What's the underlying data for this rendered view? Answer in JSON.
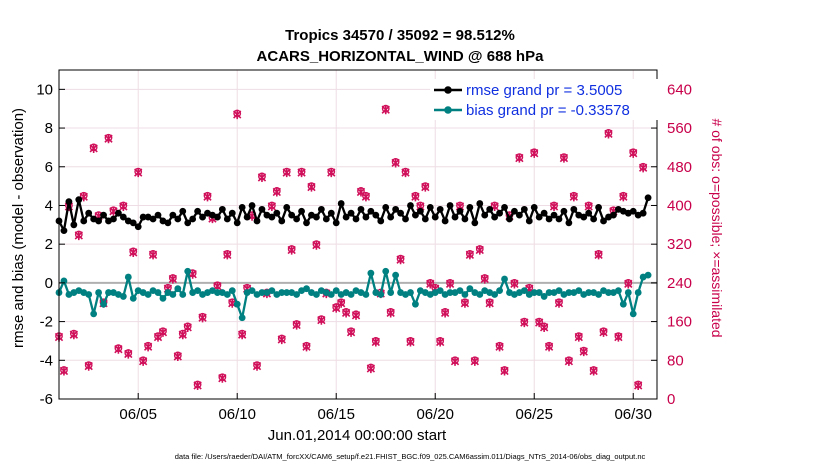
{
  "chart_data": {
    "type": "line",
    "title_line1": "Tropics 34570 / 35092 = 98.512%",
    "title_line2": "ACARS_HORIZONTAL_WIND @ 688 hPa",
    "ylabel_left": "rmse and bias (model - observation)",
    "ylabel_right": "# of obs: o=possible; ×=assimilated",
    "xlabel": "Jun.01,2014 00:00:00 start",
    "footnote": "data file: /Users/raeder/DAI/ATM_forcXX/CAM6_setup/f.e21.FHIST_BGC.f09_025.CAM6assim.011/Diags_NTrS_2014-06/obs_diag_output.nc",
    "xlim": [
      1,
      31.2
    ],
    "ylim_left": [
      -6,
      11
    ],
    "ylim_right": [
      0,
      680
    ],
    "yticks_left": [
      -6,
      -4,
      -2,
      0,
      2,
      4,
      6,
      8,
      10
    ],
    "yticks_right": [
      0,
      80,
      160,
      240,
      320,
      400,
      480,
      560,
      640
    ],
    "xticks": [
      {
        "value": 5,
        "label": "06/05"
      },
      {
        "value": 10,
        "label": "06/10"
      },
      {
        "value": 15,
        "label": "06/15"
      },
      {
        "value": 20,
        "label": "06/20"
      },
      {
        "value": 25,
        "label": "06/25"
      },
      {
        "value": 30,
        "label": "06/30"
      }
    ],
    "legend": [
      {
        "name": "rmse grand pr = 3.5005",
        "color": "#000000"
      },
      {
        "name": "bias grand pr = -0.33578",
        "color": "#008080"
      }
    ],
    "colors": {
      "rmse": "#000000",
      "bias": "#008080",
      "obs": "#d0105a",
      "zero_line": "#b0b0b0",
      "axes": "#000000"
    },
    "x": [
      1.0,
      1.25,
      1.5,
      1.75,
      2.0,
      2.25,
      2.5,
      2.75,
      3.0,
      3.25,
      3.5,
      3.75,
      4.0,
      4.25,
      4.5,
      4.75,
      5.0,
      5.25,
      5.5,
      5.75,
      6.0,
      6.25,
      6.5,
      6.75,
      7.0,
      7.25,
      7.5,
      7.75,
      8.0,
      8.25,
      8.5,
      8.75,
      9.0,
      9.25,
      9.5,
      9.75,
      10.0,
      10.25,
      10.5,
      10.75,
      11.0,
      11.25,
      11.5,
      11.75,
      12.0,
      12.25,
      12.5,
      12.75,
      13.0,
      13.25,
      13.5,
      13.75,
      14.0,
      14.25,
      14.5,
      14.75,
      15.0,
      15.25,
      15.5,
      15.75,
      16.0,
      16.25,
      16.5,
      16.75,
      17.0,
      17.25,
      17.5,
      17.75,
      18.0,
      18.25,
      18.5,
      18.75,
      19.0,
      19.25,
      19.5,
      19.75,
      20.0,
      20.25,
      20.5,
      20.75,
      21.0,
      21.25,
      21.5,
      21.75,
      22.0,
      22.25,
      22.5,
      22.75,
      23.0,
      23.25,
      23.5,
      23.75,
      24.0,
      24.25,
      24.5,
      24.75,
      25.0,
      25.25,
      25.5,
      25.75,
      26.0,
      26.25,
      26.5,
      26.75,
      27.0,
      27.25,
      27.5,
      27.75,
      28.0,
      28.25,
      28.5,
      28.75,
      29.0,
      29.25,
      29.5,
      29.75,
      30.0,
      30.25,
      30.5,
      30.75
    ],
    "series": [
      {
        "name": "rmse",
        "values": [
          3.2,
          2.7,
          4.2,
          3.0,
          4.3,
          3.2,
          3.6,
          3.3,
          3.2,
          3.5,
          3.2,
          3.3,
          3.6,
          3.4,
          3.2,
          3.1,
          2.9,
          3.4,
          3.4,
          3.3,
          3.5,
          3.2,
          3.1,
          3.5,
          3.3,
          3.7,
          3.1,
          3.3,
          3.7,
          3.4,
          3.6,
          3.5,
          3.4,
          3.8,
          3.3,
          3.6,
          3.1,
          3.9,
          3.4,
          4.0,
          3.2,
          3.8,
          3.5,
          3.4,
          3.6,
          3.2,
          3.9,
          3.5,
          3.3,
          3.7,
          3.1,
          3.5,
          3.4,
          3.8,
          3.3,
          3.6,
          3.1,
          4.1,
          3.4,
          3.6,
          3.3,
          3.8,
          3.4,
          3.7,
          3.5,
          3.2,
          3.9,
          3.4,
          3.8,
          3.6,
          3.3,
          4.0,
          3.5,
          3.7,
          3.3,
          3.9,
          3.4,
          3.8,
          3.2,
          4.0,
          3.4,
          3.7,
          3.3,
          3.9,
          3.1,
          4.1,
          3.5,
          3.8,
          3.4,
          3.6,
          3.9,
          3.3,
          3.7,
          3.5,
          3.8,
          3.2,
          3.9,
          3.4,
          3.6,
          3.3,
          3.5,
          3.3,
          3.7,
          3.1,
          3.8,
          3.5,
          3.4,
          3.6,
          3.3,
          3.9,
          3.2,
          3.4,
          3.5,
          3.8,
          3.7,
          3.6,
          3.7,
          3.5,
          3.6,
          4.4
        ]
      },
      {
        "name": "bias",
        "values": [
          -0.5,
          0.1,
          -0.6,
          -0.5,
          -0.4,
          -0.5,
          -0.6,
          -1.6,
          -0.5,
          -1.1,
          -0.5,
          -0.5,
          -0.6,
          -0.7,
          0.3,
          -0.8,
          -0.4,
          -0.5,
          -0.6,
          -0.4,
          -0.5,
          -0.8,
          -0.5,
          -0.6,
          -0.3,
          -0.6,
          0.6,
          -0.5,
          -0.4,
          -0.6,
          -0.5,
          -0.4,
          -0.5,
          -0.5,
          -0.6,
          -0.4,
          -1.1,
          -1.8,
          -0.5,
          -0.4,
          -0.6,
          -0.5,
          -0.5,
          -0.4,
          -0.6,
          -0.5,
          -0.5,
          -0.5,
          -0.6,
          -0.4,
          -0.3,
          -0.5,
          -0.6,
          -0.4,
          -0.5,
          -0.6,
          -0.4,
          -0.6,
          -0.5,
          -0.6,
          -0.4,
          -0.5,
          -0.6,
          0.5,
          -0.5,
          -0.6,
          0.6,
          -0.5,
          0.4,
          -0.5,
          -0.6,
          -0.5,
          -1.1,
          -0.4,
          -0.5,
          -0.6,
          -0.5,
          -0.4,
          -0.6,
          -0.5,
          -0.5,
          -0.4,
          -0.6,
          -0.3,
          -0.5,
          -0.6,
          -0.4,
          -0.5,
          -0.6,
          -0.4,
          0.2,
          -0.5,
          -0.6,
          -0.5,
          -0.4,
          -0.6,
          -0.5,
          -0.5,
          -0.7,
          -0.5,
          -0.5,
          -0.4,
          -0.6,
          -0.5,
          -0.5,
          -0.4,
          -0.6,
          -0.5,
          -0.5,
          -0.6,
          -0.4,
          -0.5,
          -0.5,
          -0.4,
          -1.1,
          -0.5,
          -1.6,
          -0.5,
          0.3,
          0.4
        ]
      },
      {
        "name": "obs_possible",
        "values": [
          130,
          60,
          400,
          135,
          340,
          420,
          70,
          520,
          380,
          200,
          540,
          390,
          105,
          400,
          95,
          305,
          470,
          80,
          110,
          300,
          130,
          140,
          230,
          250,
          90,
          135,
          150,
          260,
          30,
          170,
          420,
          375,
          235,
          45,
          300,
          200,
          590,
          135,
          230,
          380,
          70,
          460,
          220,
          400,
          430,
          125,
          470,
          310,
          155,
          470,
          110,
          440,
          320,
          165,
          220,
          470,
          190,
          200,
          180,
          140,
          175,
          430,
          420,
          65,
          120,
          220,
          600,
          180,
          490,
          290,
          470,
          120,
          420,
          400,
          440,
          240,
          230,
          120,
          180,
          240,
          80,
          400,
          200,
          300,
          80,
          310,
          250,
          200,
          400,
          110,
          60,
          380,
          240,
          500,
          160,
          230,
          510,
          160,
          150,
          110,
          400,
          200,
          500,
          80,
          420,
          130,
          100,
          400,
          60,
          300,
          140,
          550,
          390,
          130,
          420,
          240,
          510,
          30,
          480,
          590
        ]
      },
      {
        "name": "obs_assimilated",
        "values": [
          128,
          58,
          398,
          133,
          338,
          418,
          68,
          518,
          378,
          198,
          538,
          388,
          103,
          398,
          93,
          303,
          468,
          78,
          108,
          298,
          128,
          138,
          228,
          248,
          88,
          133,
          148,
          258,
          28,
          168,
          418,
          373,
          233,
          43,
          298,
          198,
          588,
          133,
          228,
          378,
          68,
          458,
          218,
          398,
          428,
          123,
          468,
          308,
          153,
          468,
          108,
          438,
          318,
          163,
          218,
          468,
          188,
          198,
          178,
          138,
          173,
          428,
          418,
          63,
          118,
          218,
          598,
          178,
          488,
          288,
          468,
          118,
          418,
          398,
          438,
          238,
          228,
          118,
          178,
          238,
          78,
          398,
          198,
          298,
          78,
          308,
          248,
          198,
          398,
          108,
          58,
          378,
          238,
          498,
          158,
          228,
          508,
          158,
          148,
          108,
          398,
          198,
          498,
          78,
          418,
          128,
          98,
          398,
          58,
          298,
          138,
          548,
          388,
          128,
          418,
          238,
          508,
          28,
          478,
          588
        ]
      }
    ]
  }
}
